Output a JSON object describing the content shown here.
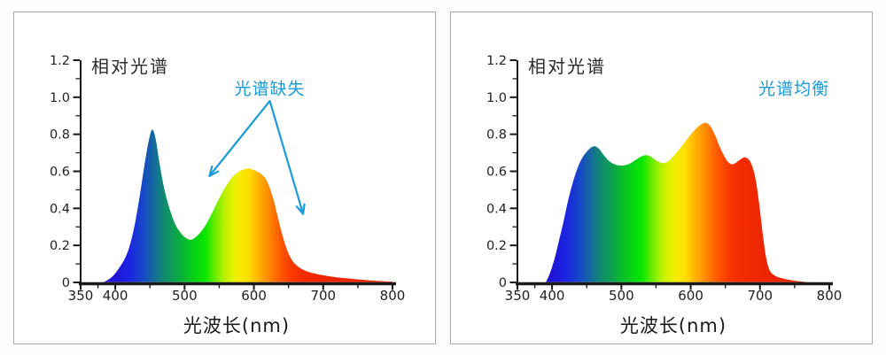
{
  "figure": {
    "background": "#ffffff",
    "panel_border_color": "#a8a8a8",
    "axis_color": "#1a1a1a",
    "annotation_color": "#1d9ad8"
  },
  "spectrum_gradient": [
    [
      380,
      "#2a1ac8"
    ],
    [
      400,
      "#2114d6"
    ],
    [
      420,
      "#1a24e2"
    ],
    [
      440,
      "#1648c8"
    ],
    [
      455,
      "#14699f"
    ],
    [
      470,
      "#108a70"
    ],
    [
      485,
      "#0d9f52"
    ],
    [
      500,
      "#0abb2d"
    ],
    [
      515,
      "#06d414"
    ],
    [
      530,
      "#0ae800"
    ],
    [
      545,
      "#70ec00"
    ],
    [
      558,
      "#b8f000"
    ],
    [
      570,
      "#e4f200"
    ],
    [
      582,
      "#fae800"
    ],
    [
      592,
      "#ffdf00"
    ],
    [
      602,
      "#ffc000"
    ],
    [
      612,
      "#ffa300"
    ],
    [
      622,
      "#ff8800"
    ],
    [
      632,
      "#ff6a00"
    ],
    [
      642,
      "#ff5000"
    ],
    [
      655,
      "#f93a00"
    ],
    [
      670,
      "#f42d00"
    ],
    [
      690,
      "#ef2800"
    ],
    [
      720,
      "#ec2500"
    ],
    [
      800,
      "#e82200"
    ]
  ],
  "chart_data": [
    {
      "type": "area",
      "title": "相对光谱",
      "xlabel": "光波长(nm)",
      "ylabel": "",
      "xlim": [
        350,
        800
      ],
      "ylim": [
        0,
        1.2
      ],
      "grid": false,
      "legend": "none",
      "x_tick_values": [
        350,
        400,
        500,
        600,
        700,
        800
      ],
      "x_tick_labels": [
        "350",
        "400",
        "500",
        "600",
        "700",
        "800"
      ],
      "x_minor_ticks": [
        375,
        450,
        550,
        650,
        750
      ],
      "y_tick_values": [
        0,
        0.2,
        0.4,
        0.6,
        0.8,
        1.0,
        1.2
      ],
      "y_tick_labels": [
        "0",
        "0.2",
        "0.4",
        "0.6",
        "0.8",
        "1.0",
        "1.2"
      ],
      "y_minor_ticks": [
        0.1,
        0.3,
        0.5,
        0.7,
        0.9,
        1.1
      ],
      "annotation": {
        "text": "光谱缺失",
        "color": "#1d9ad8",
        "anchor_data_coords": [
          623,
          1.05
        ]
      },
      "arrows": [
        {
          "from": [
            623,
            0.98
          ],
          "to": [
            536,
            0.575
          ]
        },
        {
          "from": [
            623,
            0.98
          ],
          "to": [
            671,
            0.37
          ]
        }
      ],
      "points": [
        [
          382,
          0
        ],
        [
          390,
          0.015
        ],
        [
          398,
          0.04
        ],
        [
          406,
          0.08
        ],
        [
          414,
          0.13
        ],
        [
          421,
          0.2
        ],
        [
          428,
          0.31
        ],
        [
          435,
          0.46
        ],
        [
          442,
          0.63
        ],
        [
          448,
          0.76
        ],
        [
          453,
          0.825
        ],
        [
          458,
          0.78
        ],
        [
          464,
          0.64
        ],
        [
          471,
          0.5
        ],
        [
          479,
          0.39
        ],
        [
          487,
          0.31
        ],
        [
          495,
          0.265
        ],
        [
          502,
          0.24
        ],
        [
          509,
          0.23
        ],
        [
          516,
          0.245
        ],
        [
          524,
          0.275
        ],
        [
          532,
          0.32
        ],
        [
          541,
          0.385
        ],
        [
          550,
          0.455
        ],
        [
          559,
          0.515
        ],
        [
          568,
          0.565
        ],
        [
          577,
          0.595
        ],
        [
          585,
          0.61
        ],
        [
          593,
          0.615
        ],
        [
          601,
          0.605
        ],
        [
          609,
          0.59
        ],
        [
          616,
          0.565
        ],
        [
          622,
          0.52
        ],
        [
          628,
          0.45
        ],
        [
          634,
          0.36
        ],
        [
          640,
          0.27
        ],
        [
          646,
          0.195
        ],
        [
          652,
          0.14
        ],
        [
          658,
          0.105
        ],
        [
          665,
          0.082
        ],
        [
          673,
          0.065
        ],
        [
          682,
          0.053
        ],
        [
          692,
          0.044
        ],
        [
          705,
          0.035
        ],
        [
          720,
          0.027
        ],
        [
          740,
          0.02
        ],
        [
          760,
          0.013
        ],
        [
          780,
          0.008
        ],
        [
          800,
          0.004
        ]
      ]
    },
    {
      "type": "area",
      "title": "相对光谱",
      "xlabel": "光波长(nm)",
      "ylabel": "",
      "xlim": [
        350,
        800
      ],
      "ylim": [
        0,
        1.2
      ],
      "grid": false,
      "legend": "none",
      "x_tick_values": [
        350,
        400,
        500,
        600,
        700,
        800
      ],
      "x_tick_labels": [
        "350",
        "400",
        "500",
        "600",
        "700",
        "800"
      ],
      "x_minor_ticks": [
        375,
        450,
        550,
        650,
        750
      ],
      "y_tick_values": [
        0,
        0.2,
        0.4,
        0.6,
        0.8,
        1.0,
        1.2
      ],
      "y_tick_labels": [
        "0",
        "0.2",
        "0.4",
        "0.6",
        "0.8",
        "1.0",
        "1.2"
      ],
      "y_minor_ticks": [
        0.1,
        0.3,
        0.5,
        0.7,
        0.9,
        1.1
      ],
      "annotation": {
        "text": "光谱均衡",
        "color": "#1d9ad8",
        "anchor_data_coords": [
          749,
          1.05
        ]
      },
      "arrows": [],
      "points": [
        [
          391,
          0
        ],
        [
          397,
          0.05
        ],
        [
          403,
          0.12
        ],
        [
          409,
          0.21
        ],
        [
          416,
          0.32
        ],
        [
          423,
          0.44
        ],
        [
          430,
          0.54
        ],
        [
          437,
          0.62
        ],
        [
          444,
          0.675
        ],
        [
          451,
          0.71
        ],
        [
          457,
          0.73
        ],
        [
          462,
          0.735
        ],
        [
          468,
          0.72
        ],
        [
          474,
          0.69
        ],
        [
          481,
          0.66
        ],
        [
          488,
          0.642
        ],
        [
          496,
          0.632
        ],
        [
          504,
          0.632
        ],
        [
          512,
          0.642
        ],
        [
          520,
          0.66
        ],
        [
          528,
          0.678
        ],
        [
          535,
          0.687
        ],
        [
          542,
          0.68
        ],
        [
          549,
          0.662
        ],
        [
          556,
          0.648
        ],
        [
          562,
          0.645
        ],
        [
          569,
          0.658
        ],
        [
          577,
          0.69
        ],
        [
          586,
          0.73
        ],
        [
          595,
          0.775
        ],
        [
          604,
          0.815
        ],
        [
          612,
          0.845
        ],
        [
          620,
          0.862
        ],
        [
          627,
          0.85
        ],
        [
          634,
          0.805
        ],
        [
          641,
          0.74
        ],
        [
          648,
          0.685
        ],
        [
          654,
          0.65
        ],
        [
          660,
          0.638
        ],
        [
          666,
          0.648
        ],
        [
          672,
          0.665
        ],
        [
          678,
          0.675
        ],
        [
          684,
          0.662
        ],
        [
          689,
          0.625
        ],
        [
          694,
          0.55
        ],
        [
          699,
          0.42
        ],
        [
          704,
          0.26
        ],
        [
          709,
          0.13
        ],
        [
          714,
          0.065
        ],
        [
          720,
          0.04
        ],
        [
          728,
          0.026
        ],
        [
          738,
          0.017
        ],
        [
          750,
          0.009
        ],
        [
          762,
          0.004
        ],
        [
          772,
          0
        ]
      ]
    }
  ]
}
